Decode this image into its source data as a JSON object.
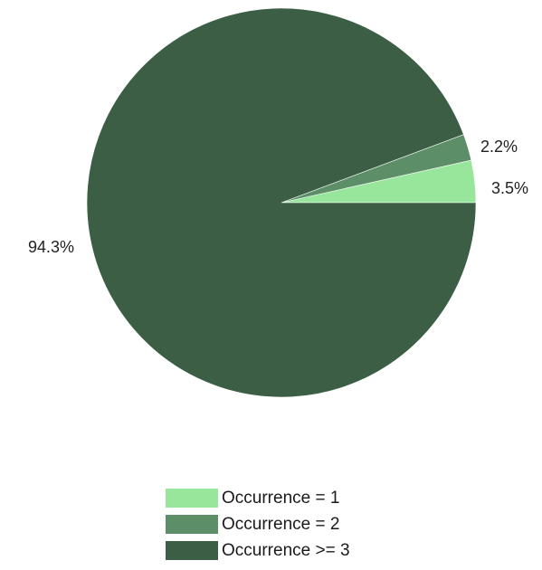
{
  "chart_data": {
    "type": "pie",
    "title": "",
    "slices": [
      {
        "label": "Occurrence = 1",
        "value": 3.5,
        "value_label": "3.5%",
        "color": "#98e69c"
      },
      {
        "label": "Occurrence = 2",
        "value": 2.2,
        "value_label": "2.2%",
        "color": "#5c8f68"
      },
      {
        "label": "Occurrence >= 3",
        "value": 94.3,
        "value_label": "94.3%",
        "color": "#3b5e44"
      }
    ],
    "start_angle": "3 o'clock, counter-clockwise",
    "legend_position": "bottom"
  }
}
